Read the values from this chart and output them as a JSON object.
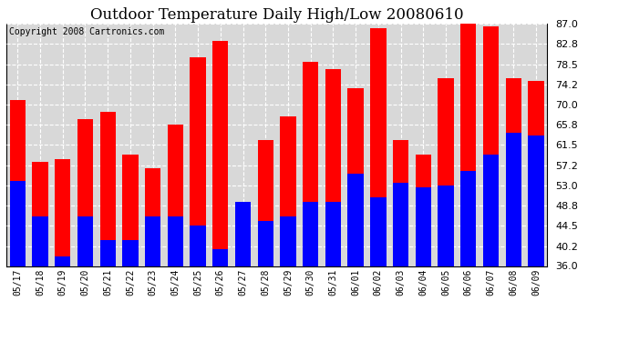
{
  "title": "Outdoor Temperature Daily High/Low 20080610",
  "copyright": "Copyright 2008 Cartronics.com",
  "dates": [
    "05/17",
    "05/18",
    "05/19",
    "05/20",
    "05/21",
    "05/22",
    "05/23",
    "05/24",
    "05/25",
    "05/26",
    "05/27",
    "05/28",
    "05/29",
    "05/30",
    "05/31",
    "06/01",
    "06/02",
    "06/03",
    "06/04",
    "06/05",
    "06/06",
    "06/07",
    "06/08",
    "06/09"
  ],
  "highs": [
    71.0,
    58.0,
    58.5,
    67.0,
    68.5,
    59.5,
    56.5,
    65.8,
    80.0,
    83.5,
    49.5,
    62.5,
    67.5,
    79.0,
    77.5,
    73.5,
    86.0,
    62.5,
    59.5,
    75.5,
    87.0,
    86.5,
    75.5,
    75.0
  ],
  "lows": [
    54.0,
    46.5,
    38.0,
    46.5,
    41.5,
    41.5,
    46.5,
    46.5,
    44.5,
    39.5,
    49.5,
    45.5,
    46.5,
    49.5,
    49.5,
    55.5,
    50.5,
    53.5,
    52.5,
    53.0,
    56.0,
    59.5,
    64.0,
    63.5
  ],
  "high_color": "#ff0000",
  "low_color": "#0000ff",
  "bg_color": "#ffffff",
  "plot_bg_color": "#d8d8d8",
  "grid_color": "#ffffff",
  "ymin": 36.0,
  "ymax": 87.0,
  "yticks": [
    36.0,
    40.2,
    44.5,
    48.8,
    53.0,
    57.2,
    61.5,
    65.8,
    70.0,
    74.2,
    78.5,
    82.8,
    87.0
  ],
  "title_fontsize": 12,
  "copyright_fontsize": 7,
  "bar_width": 0.7
}
